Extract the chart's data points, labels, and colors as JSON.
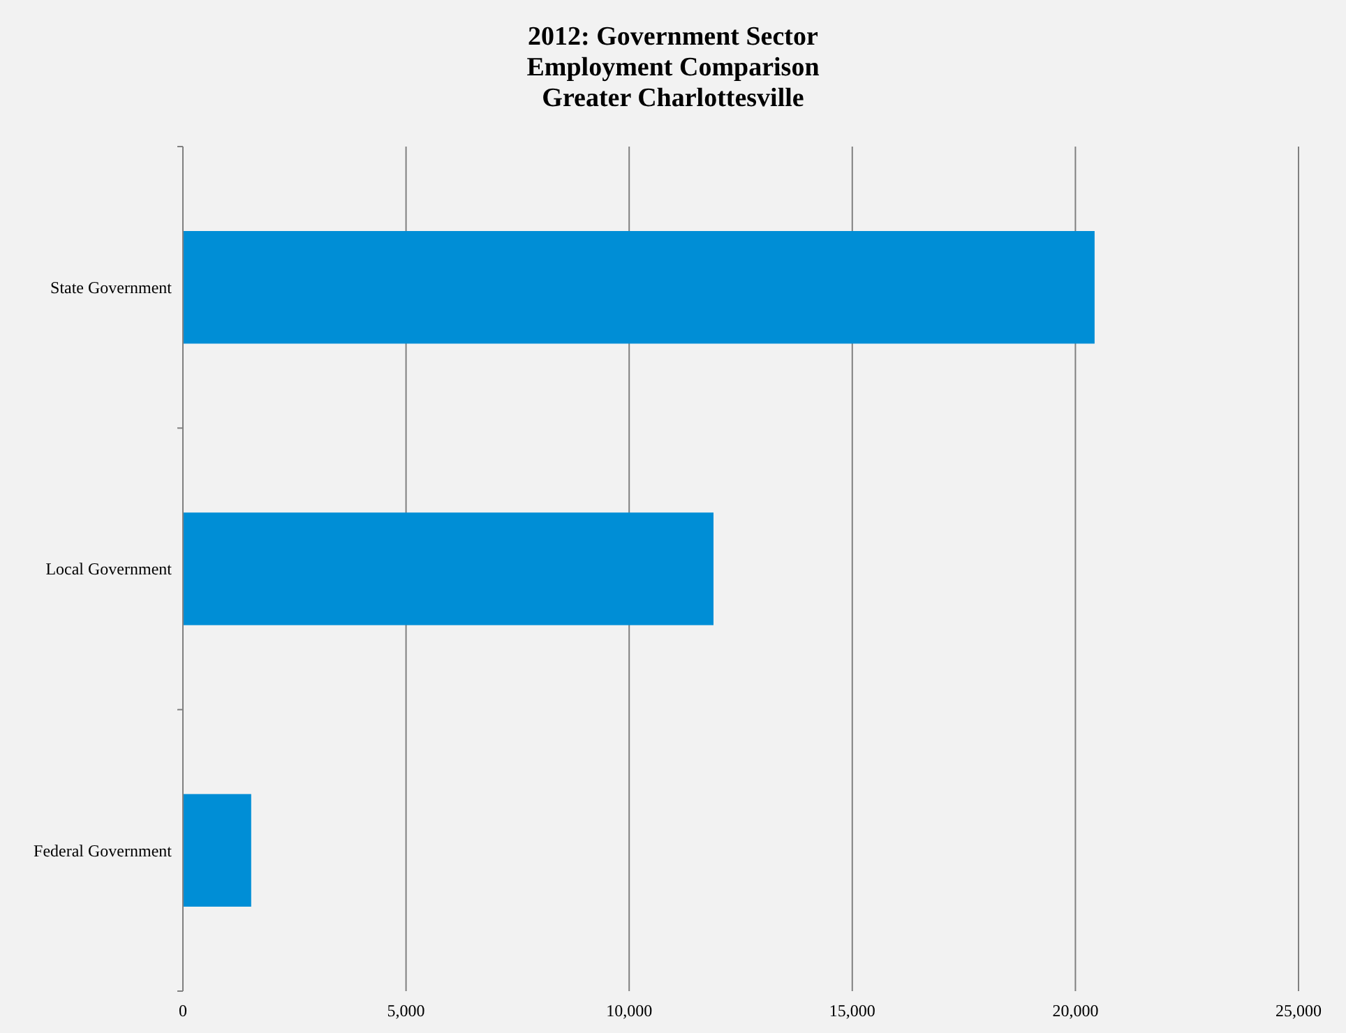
{
  "chart_data": {
    "type": "bar",
    "orientation": "horizontal",
    "title": "2012: Government Sector\nEmployment Comparison\nGreater Charlottesville",
    "categories": [
      "State Government",
      "Local Government",
      "Federal Government"
    ],
    "values": [
      20430,
      11890,
      1530
    ],
    "color": "#008ed6",
    "xlim": [
      0,
      25000
    ],
    "xticks": [
      {
        "value": 0,
        "label": "0"
      },
      {
        "value": 5000,
        "label": "5,000"
      },
      {
        "value": 10000,
        "label": "10,000"
      },
      {
        "value": 15000,
        "label": "15,000"
      },
      {
        "value": 20000,
        "label": "20,000"
      },
      {
        "value": 25000,
        "label": "25,000"
      }
    ],
    "grid": "x"
  }
}
